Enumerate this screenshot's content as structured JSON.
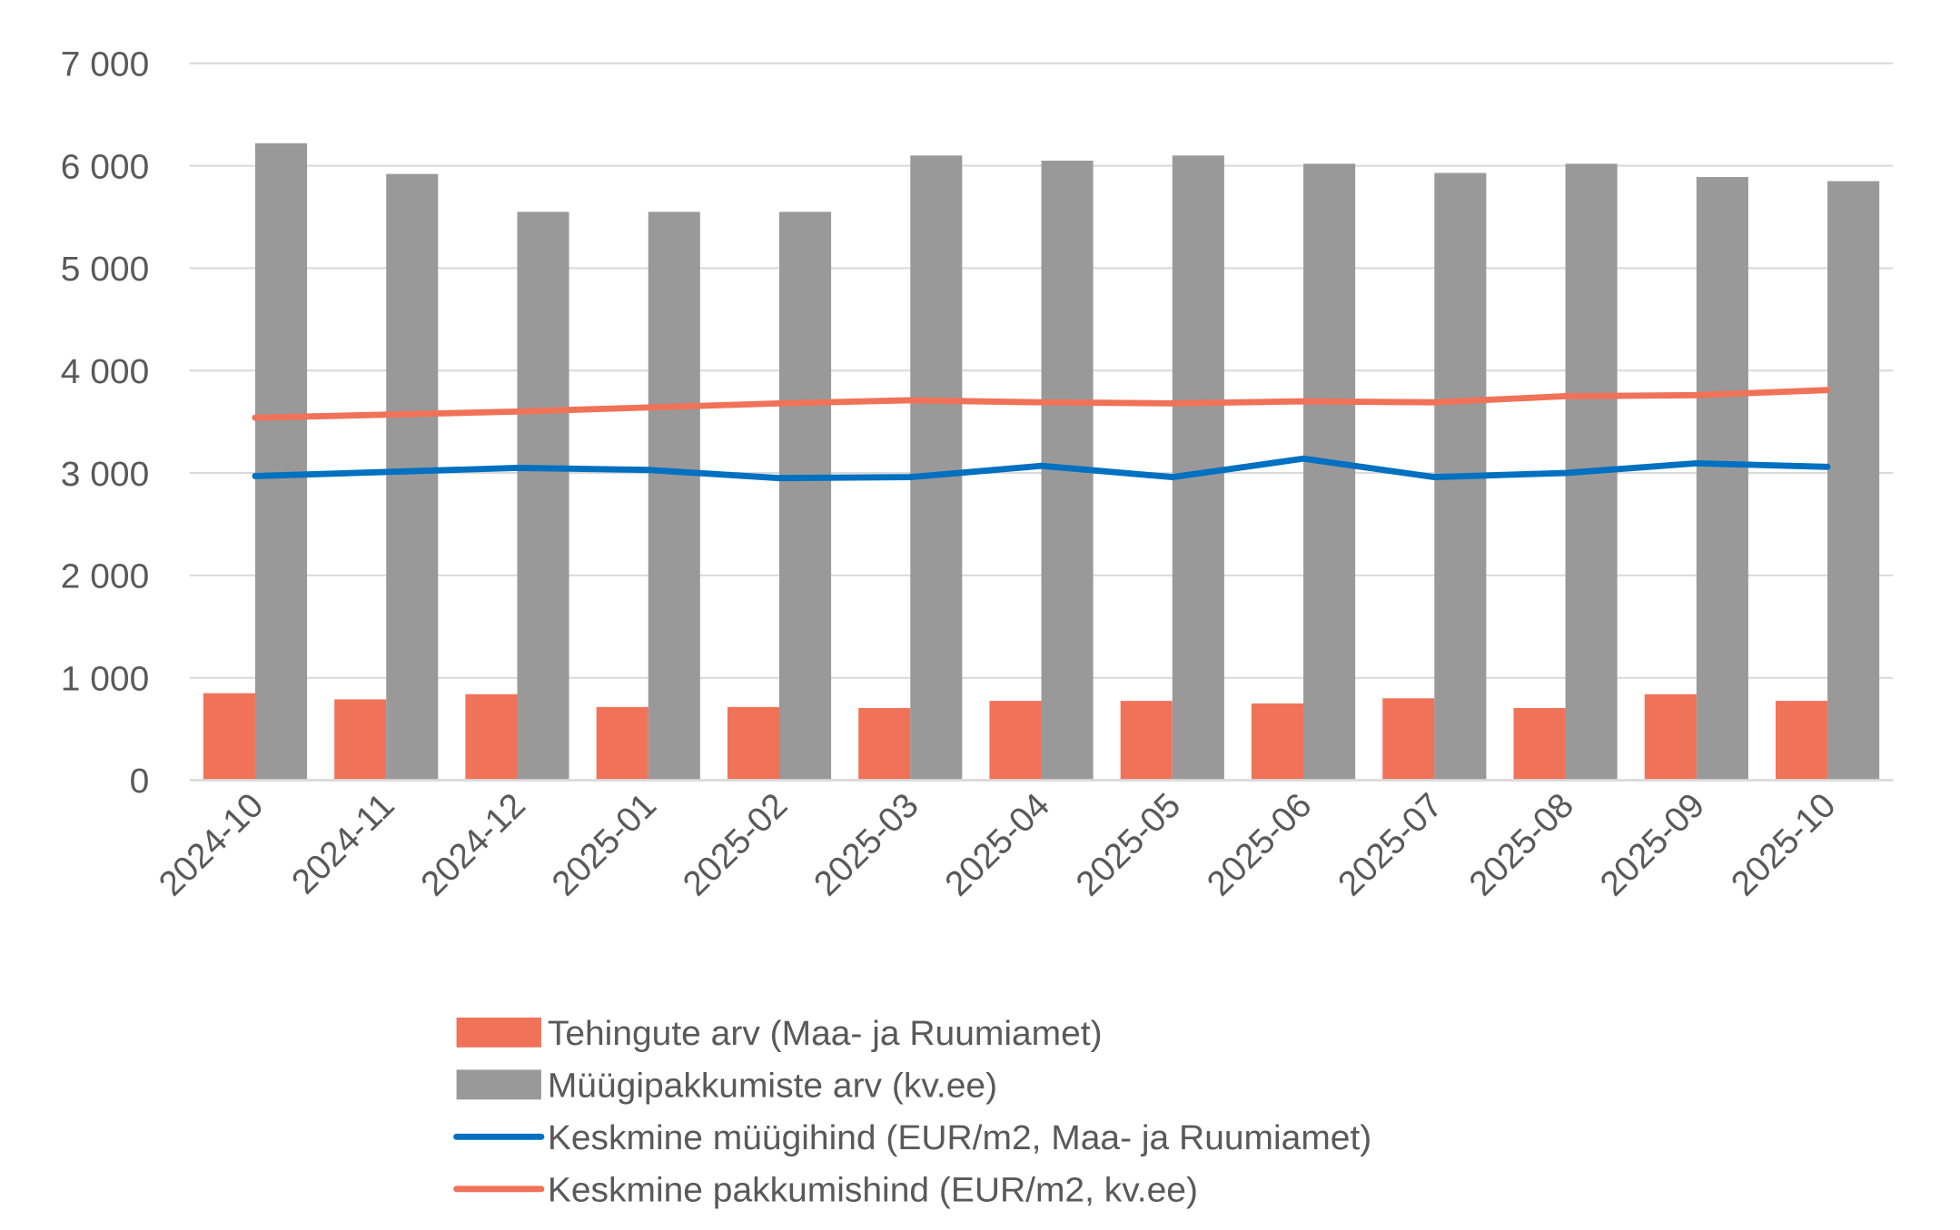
{
  "chart_data": {
    "type": "bar",
    "categories": [
      "2024-10",
      "2024-11",
      "2024-12",
      "2025-01",
      "2025-02",
      "2025-03",
      "2025-04",
      "2025-05",
      "2025-06",
      "2025-07",
      "2025-08",
      "2025-09",
      "2025-10"
    ],
    "ylim": [
      0,
      7000
    ],
    "yticks": [
      0,
      1000,
      2000,
      3000,
      4000,
      5000,
      6000,
      7000
    ],
    "ytick_labels": [
      "0",
      "1 000",
      "2 000",
      "3 000",
      "4 000",
      "5 000",
      "6 000",
      "7 000"
    ],
    "grid": true,
    "legend_placement": "bottom",
    "series": [
      {
        "name": "Tehingute arv (Maa- ja Ruumiamet)",
        "kind": "bar",
        "color": "#F07258",
        "values": [
          850,
          790,
          840,
          715,
          715,
          705,
          775,
          775,
          750,
          800,
          705,
          840,
          775
        ]
      },
      {
        "name": "Müügipakkumiste arv (kv.ee)",
        "kind": "bar",
        "color": "#999999",
        "values": [
          6220,
          5920,
          5550,
          5550,
          5550,
          6100,
          6050,
          6100,
          6020,
          5930,
          6020,
          5890,
          5850
        ]
      },
      {
        "name": "Keskmine müügihind (EUR/m2, Maa- ja Ruumiamet)",
        "kind": "line",
        "color": "#0070C0",
        "values": [
          2970,
          3010,
          3050,
          3030,
          2950,
          2960,
          3070,
          2960,
          3140,
          2960,
          3000,
          3095,
          3060
        ]
      },
      {
        "name": "Keskmine pakkumishind (EUR/m2, kv.ee)",
        "kind": "line",
        "color": "#F07258",
        "values": [
          3540,
          3570,
          3600,
          3640,
          3680,
          3710,
          3690,
          3680,
          3700,
          3690,
          3750,
          3760,
          3810
        ]
      }
    ]
  }
}
